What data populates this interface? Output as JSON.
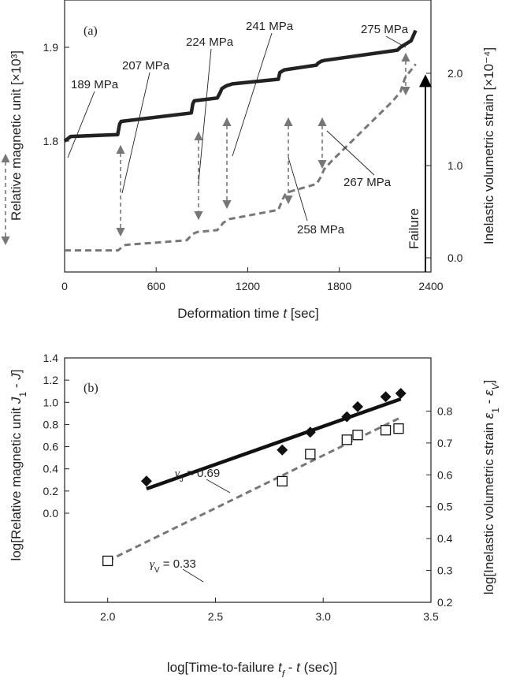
{
  "chart_data": [
    {
      "type": "line",
      "panel_label": "(a)",
      "xlabel": "Deformation time t [sec]",
      "xlabel_main": "Deformation time ",
      "xlabel_var": "t",
      "xlabel_unit": " [sec]",
      "ylabel": "Relative magnetic unit [×10³]",
      "y2label": "Inelastic volumetric strain [×10⁻⁴]",
      "xlim": [
        0,
        2400
      ],
      "ylim": [
        1.72,
        1.925
      ],
      "y2lim": [
        -0.1,
        2.5
      ],
      "xticks": [
        "0",
        "600",
        "1200",
        "1800",
        "2400"
      ],
      "yticks": [
        "1.8",
        "1.9"
      ],
      "y2ticks": [
        "0.0",
        "1.0",
        "2.0"
      ],
      "series": [
        {
          "axis": "left",
          "style": "solid",
          "color": "#222222",
          "x": [
            0,
            40,
            348,
            360,
            370,
            830,
            840,
            850,
            1000,
            1020,
            1030,
            1060,
            1100,
            1400,
            1410,
            1430,
            1440,
            1650,
            1660,
            1680,
            1700,
            2180,
            2200,
            2270,
            2300
          ],
          "y": [
            1.8,
            1.805,
            1.807,
            1.818,
            1.821,
            1.83,
            1.84,
            1.843,
            1.846,
            1.852,
            1.856,
            1.859,
            1.861,
            1.866,
            1.873,
            1.875,
            1.876,
            1.881,
            1.883,
            1.885,
            1.886,
            1.897,
            1.9,
            1.907,
            1.918
          ]
        },
        {
          "axis": "right",
          "style": "dashed",
          "color": "#777777",
          "x": [
            0,
            350,
            380,
            400,
            800,
            840,
            870,
            1000,
            1040,
            1080,
            1400,
            1430,
            1450,
            1480,
            1650,
            1680,
            1700,
            1750,
            2150,
            2200,
            2230,
            2300
          ],
          "y": [
            0.08,
            0.08,
            0.12,
            0.14,
            0.19,
            0.26,
            0.28,
            0.3,
            0.38,
            0.42,
            0.52,
            0.64,
            0.7,
            0.72,
            0.8,
            0.88,
            0.96,
            1.05,
            1.7,
            1.8,
            1.95,
            2.1
          ]
        }
      ],
      "annotations": [
        {
          "text": "189 MPa",
          "x": 15
        },
        {
          "text": "207 MPa",
          "x": 350
        },
        {
          "text": "224 MPa",
          "x": 835
        },
        {
          "text": "241 MPa",
          "x": 1030
        },
        {
          "text": "258 MPa",
          "x": 1440
        },
        {
          "text": "267 MPa",
          "x": 1670
        },
        {
          "text": "275 MPa",
          "x": 2180
        }
      ],
      "failure_label": "Failure",
      "failure_x": 2300
    },
    {
      "type": "scatter",
      "panel_label": "(b)",
      "xlabel": "log[Time-to-failure tf - t (sec)]",
      "xlabel_main": "log[Time-to-failure ",
      "xlabel_var": "t",
      "xlabel_sub": "f",
      "xlabel_tail": " - ",
      "xlabel_var2": "t",
      "xlabel_end": " (sec)]",
      "ylabel": "log[Relative magnetic unit J1 - J]",
      "ylabel_main": "log[Relative magnetic unit ",
      "ylabel_var": "J",
      "ylabel_sub": "1",
      "ylabel_mid": " - ",
      "ylabel_var2": "J",
      "ylabel_end": "]",
      "y2label": "log[Inelastic volumetric strain ε1 - εV]",
      "y2label_main": "log[Inelastic volumetric strain ",
      "y2label_var": "ε",
      "y2label_sub": "1",
      "y2label_mid": " - ",
      "y2label_var2": "ε",
      "y2label_sub2": "V",
      "y2label_end": "]",
      "xlim": [
        1.8,
        3.5
      ],
      "ylim_left_ticks": [
        0.0,
        1.4
      ],
      "y2lim": [
        0.2,
        0.9
      ],
      "xticks": [
        "2.0",
        "2.5",
        "3.0",
        "3.5"
      ],
      "yticks": [
        "0.0",
        "0.2",
        "0.4",
        "0.6",
        "0.8",
        "1.0",
        "1.2",
        "1.4"
      ],
      "y2ticks": [
        "0.2",
        "0.3",
        "0.4",
        "0.5",
        "0.6",
        "0.7",
        "0.8"
      ],
      "series": [
        {
          "name": "J",
          "axis": "left",
          "marker": "filled-diamond",
          "color": "#222222",
          "x": [
            2.18,
            2.81,
            2.94,
            3.11,
            3.16,
            3.29,
            3.36
          ],
          "y": [
            0.29,
            0.57,
            0.73,
            0.87,
            0.96,
            1.05,
            1.08
          ]
        },
        {
          "name": "V",
          "axis": "right",
          "marker": "open-square",
          "color": "#222222",
          "x": [
            2.0,
            2.81,
            2.94,
            3.11,
            3.16,
            3.29,
            3.35
          ],
          "y": [
            0.33,
            0.58,
            0.665,
            0.71,
            0.725,
            0.74,
            0.745
          ]
        }
      ],
      "fits": [
        {
          "series": "J",
          "label_sym": "γ",
          "label_sub": "J",
          "label_val": " = 0.69",
          "x": [
            2.18,
            3.36
          ],
          "y": [
            0.22,
            1.03
          ]
        },
        {
          "series": "V",
          "label_sym": "γ",
          "label_sub": "V",
          "label_val": " = 0.33",
          "x": [
            2.0,
            3.36
          ],
          "y": [
            0.33,
            0.78
          ]
        }
      ]
    }
  ]
}
